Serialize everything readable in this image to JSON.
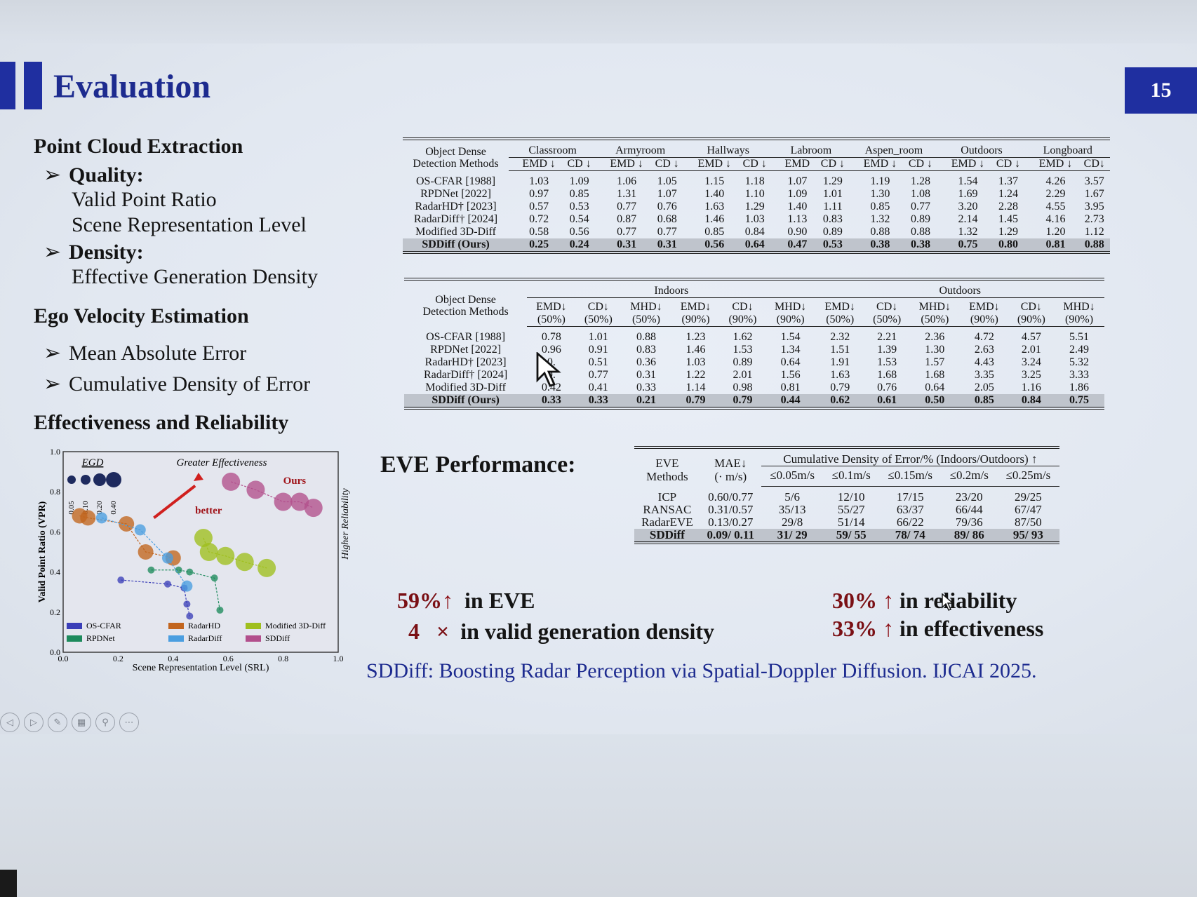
{
  "slide": {
    "title": "Evaluation",
    "page_number": "15"
  },
  "outline": {
    "section1": "Point Cloud Extraction",
    "quality_label": "Quality:",
    "quality_items": [
      "Valid Point Ratio",
      "Scene Representation Level"
    ],
    "density_label": "Density:",
    "density_items": [
      "Effective Generation Density"
    ],
    "section2": "Ego Velocity Estimation",
    "ego_items": [
      "Mean Absolute Error",
      "Cumulative Density of Error"
    ],
    "section3": "Effectiveness and Reliability",
    "arrow_glyph": "➢"
  },
  "table1": {
    "method_header_1": "Object Dense",
    "method_header_2": "Detection Methods",
    "groups": [
      "Classroom",
      "Armyroom",
      "Hallways",
      "Labroom",
      "Aspen_room",
      "Outdoors",
      "Longboard"
    ],
    "subheaders": [
      "EMD ↓",
      "CD ↓",
      "EMD ↓",
      "CD ↓",
      "EMD ↓",
      "CD ↓",
      "EMD",
      "CD ↓",
      "EMD ↓",
      "CD ↓",
      "EMD ↓",
      "CD ↓",
      "EMD ↓",
      "CD↓"
    ],
    "rows": [
      {
        "method": "OS-CFAR [1988]",
        "values": [
          "1.03",
          "1.09",
          "1.06",
          "1.05",
          "1.15",
          "1.18",
          "1.07",
          "1.29",
          "1.19",
          "1.28",
          "1.54",
          "1.37",
          "4.26",
          "3.57"
        ]
      },
      {
        "method": "RPDNet [2022]",
        "values": [
          "0.97",
          "0.85",
          "1.31",
          "1.07",
          "1.40",
          "1.10",
          "1.09",
          "1.01",
          "1.30",
          "1.08",
          "1.69",
          "1.24",
          "2.29",
          "1.67"
        ]
      },
      {
        "method": "RadarHD† [2023]",
        "values": [
          "0.57",
          "0.53",
          "0.77",
          "0.76",
          "1.63",
          "1.29",
          "1.40",
          "1.11",
          "0.85",
          "0.77",
          "3.20",
          "2.28",
          "4.55",
          "3.95"
        ]
      },
      {
        "method": "RadarDiff† [2024]",
        "values": [
          "0.72",
          "0.54",
          "0.87",
          "0.68",
          "1.46",
          "1.03",
          "1.13",
          "0.83",
          "1.32",
          "0.89",
          "2.14",
          "1.45",
          "4.16",
          "2.73"
        ]
      },
      {
        "method": "Modified 3D-Diff",
        "values": [
          "0.58",
          "0.56",
          "0.77",
          "0.77",
          "0.85",
          "0.84",
          "0.90",
          "0.89",
          "0.88",
          "0.88",
          "1.32",
          "1.29",
          "1.20",
          "1.12"
        ]
      },
      {
        "method": "SDDiff (Ours)",
        "values": [
          "0.25",
          "0.24",
          "0.31",
          "0.31",
          "0.56",
          "0.64",
          "0.47",
          "0.53",
          "0.38",
          "0.38",
          "0.75",
          "0.80",
          "0.81",
          "0.88"
        ]
      }
    ]
  },
  "table2": {
    "method_header_1": "Object Dense",
    "method_header_2": "Detection Methods",
    "groups": [
      "Indoors",
      "Outdoors"
    ],
    "subheaders_top": [
      "EMD↓",
      "CD↓",
      "MHD↓",
      "EMD↓",
      "CD↓",
      "MHD↓",
      "EMD↓",
      "CD↓",
      "MHD↓",
      "EMD↓",
      "CD↓",
      "MHD↓"
    ],
    "subheaders_bottom": [
      "(50%)",
      "(50%)",
      "(50%)",
      "(90%)",
      "(90%)",
      "(90%)",
      "(50%)",
      "(50%)",
      "(50%)",
      "(90%)",
      "(90%)",
      "(90%)"
    ],
    "rows": [
      {
        "method": "OS-CFAR [1988]",
        "values": [
          "0.78",
          "1.01",
          "0.88",
          "1.23",
          "1.62",
          "1.54",
          "2.32",
          "2.21",
          "2.36",
          "4.72",
          "4.57",
          "5.51"
        ]
      },
      {
        "method": "RPDNet [2022]",
        "values": [
          "0.96",
          "0.91",
          "0.83",
          "1.46",
          "1.53",
          "1.34",
          "1.51",
          "1.39",
          "1.30",
          "2.63",
          "2.01",
          "2.49"
        ]
      },
      {
        "method": "RadarHD† [2023]",
        "values": [
          "0.",
          "0.51",
          "0.36",
          "1.03",
          "0.89",
          "0.64",
          "1.91",
          "1.53",
          "1.57",
          "4.43",
          "3.24",
          "5.32"
        ]
      },
      {
        "method": "RadarDiff† [2024]",
        "values": [
          "0.",
          "0.77",
          "0.31",
          "1.22",
          "2.01",
          "1.56",
          "1.63",
          "1.68",
          "1.68",
          "3.35",
          "3.25",
          "3.33"
        ]
      },
      {
        "method": "Modified 3D-Diff",
        "values": [
          "0.42",
          "0.41",
          "0.33",
          "1.14",
          "0.98",
          "0.81",
          "0.79",
          "0.76",
          "0.64",
          "2.05",
          "1.16",
          "1.86"
        ]
      },
      {
        "method": "SDDiff (Ours)",
        "values": [
          "0.33",
          "0.33",
          "0.21",
          "0.79",
          "0.79",
          "0.44",
          "0.62",
          "0.61",
          "0.50",
          "0.85",
          "0.84",
          "0.75"
        ]
      }
    ]
  },
  "table3": {
    "method_header_1": "EVE",
    "method_header_2": "Methods",
    "mae_header_1": "MAE↓",
    "mae_header_2": "(· m/s)",
    "group": "Cumulative Density of Error/% (Indoors/Outdoors) ↑",
    "subheaders": [
      "≤0.05m/s",
      "≤0.1m/s",
      "≤0.15m/s",
      "≤0.2m/s",
      "≤0.25m/s"
    ],
    "rows": [
      {
        "method": "ICP",
        "values": [
          "0.60/0.77",
          "5/6",
          "12/10",
          "17/15",
          "23/20",
          "29/25"
        ]
      },
      {
        "method": "RANSAC",
        "values": [
          "0.31/0.57",
          "35/13",
          "55/27",
          "63/37",
          "66/44",
          "67/47"
        ]
      },
      {
        "method": "RadarEVE",
        "values": [
          "0.13/0.27",
          "29/8",
          "51/14",
          "66/22",
          "79/36",
          "87/50"
        ]
      },
      {
        "method": "SDDiff",
        "values": [
          "0.09/ 0.11",
          "31/ 29",
          "59/ 55",
          "78/ 74",
          "89/ 86",
          "95/ 93"
        ]
      }
    ]
  },
  "eve_title": "EVE Performance:",
  "claims": {
    "c1_num": "59%",
    "c1_text": "in EVE",
    "c2_num": "4",
    "c2_sym": "×",
    "c2_text": "in valid generation density",
    "c3_num": "30%",
    "c3_text": "in reliability",
    "c4_num": "33%",
    "c4_text": "in effectiveness",
    "up_arrow": "↑"
  },
  "citation": "SDDiff: Boosting Radar Perception via Spatial-Doppler Diffusion. IJCAI 2025.",
  "chart_data": {
    "type": "scatter",
    "title": "",
    "xlabel": "Scene Representation Level (SRL)",
    "ylabel": "Valid Point Ratio (VPR)",
    "right_label": "Higher Reliability",
    "top_label": "Greater Effectiveness",
    "egd_label": "EGD",
    "egd_sizes": [
      "0.05",
      "0.10",
      "0.20",
      "0.40"
    ],
    "better_label": "better",
    "ours_label": "Ours",
    "xlim": [
      0,
      1.0
    ],
    "ylim": [
      0,
      1.0
    ],
    "xticks": [
      "0.0",
      "0.2",
      "0.4",
      "0.6",
      "0.8",
      "1.0"
    ],
    "yticks": [
      "0.0",
      "0.2",
      "0.4",
      "0.6",
      "0.8",
      "1.0"
    ],
    "legend_placement": "bottom",
    "series": [
      {
        "name": "OS-CFAR",
        "color": "#3b3fb8",
        "points": [
          [
            0.21,
            0.36
          ],
          [
            0.38,
            0.34
          ],
          [
            0.44,
            0.32
          ],
          [
            0.45,
            0.24
          ],
          [
            0.46,
            0.18
          ]
        ]
      },
      {
        "name": "RPDNet",
        "color": "#1d8a5c",
        "points": [
          [
            0.32,
            0.41
          ],
          [
            0.42,
            0.41
          ],
          [
            0.46,
            0.4
          ],
          [
            0.55,
            0.37
          ],
          [
            0.57,
            0.21
          ]
        ]
      },
      {
        "name": "RadarHD",
        "color": "#c2651e",
        "points": [
          [
            0.06,
            0.68
          ],
          [
            0.09,
            0.67
          ],
          [
            0.23,
            0.64
          ],
          [
            0.3,
            0.5
          ],
          [
            0.4,
            0.47
          ]
        ]
      },
      {
        "name": "RadarDiff",
        "color": "#4a9ee0",
        "points": [
          [
            0.14,
            0.67
          ],
          [
            0.28,
            0.61
          ],
          [
            0.38,
            0.47
          ],
          [
            0.45,
            0.33
          ]
        ]
      },
      {
        "name": "Modified 3D-Diff",
        "color": "#9fbf1e",
        "points": [
          [
            0.51,
            0.57
          ],
          [
            0.53,
            0.5
          ],
          [
            0.59,
            0.48
          ],
          [
            0.66,
            0.45
          ],
          [
            0.74,
            0.42
          ]
        ]
      },
      {
        "name": "SDDiff",
        "color": "#b24f8c",
        "points": [
          [
            0.61,
            0.85
          ],
          [
            0.7,
            0.81
          ],
          [
            0.8,
            0.75
          ],
          [
            0.86,
            0.75
          ],
          [
            0.91,
            0.72
          ]
        ]
      }
    ]
  },
  "toolbar": {
    "buttons": [
      "◁",
      "▷",
      "✎",
      "▦",
      "⚲",
      "⋯"
    ]
  }
}
